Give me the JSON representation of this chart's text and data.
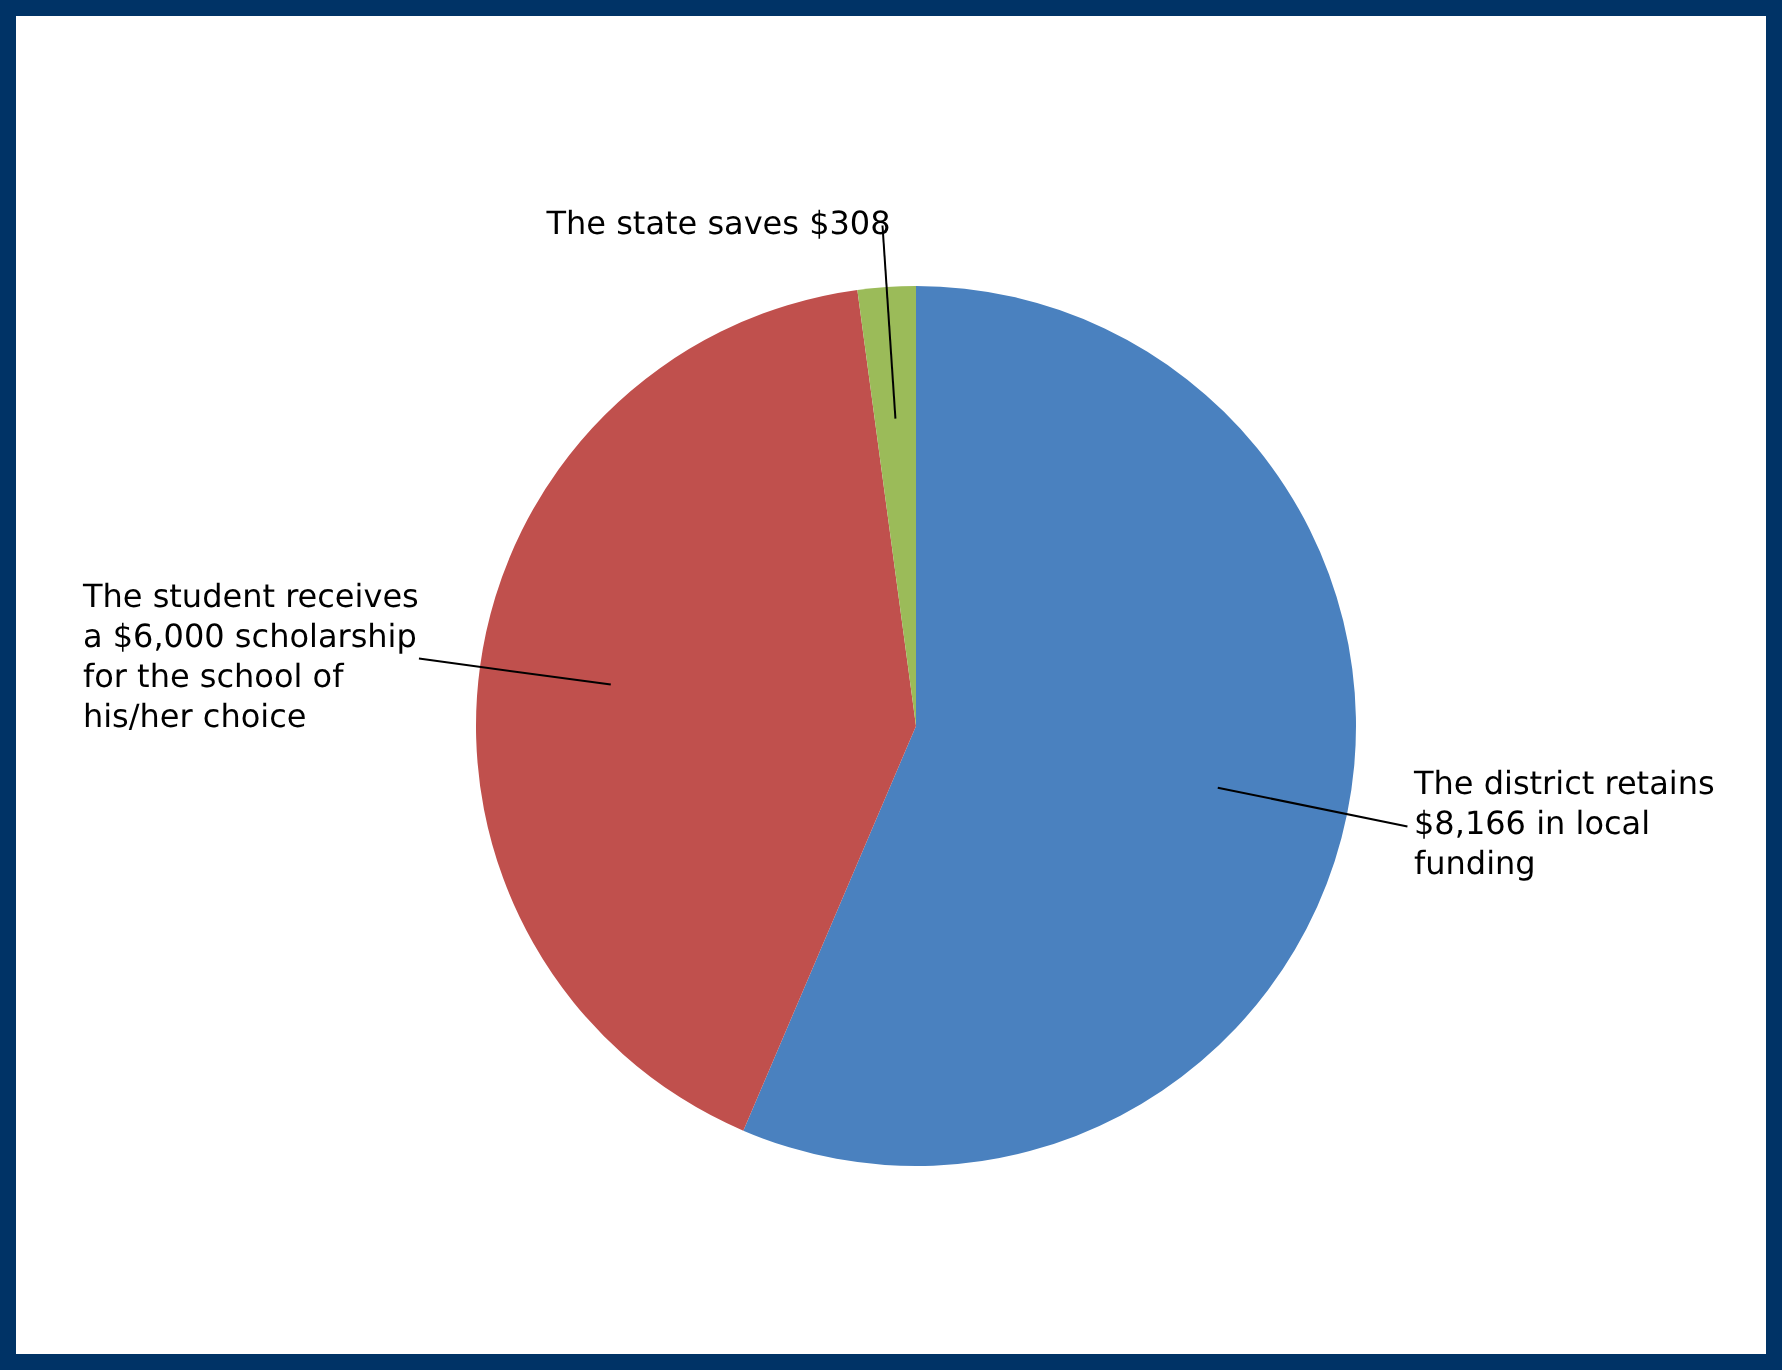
{
  "chart_data": {
    "type": "pie",
    "categories": [
      "The district retains $8,166 in local funding",
      "The student receives a $6,000 scholarship for the school of his/her choice",
      "The state saves $308"
    ],
    "values": [
      8166,
      6000,
      308
    ],
    "colors": [
      "#4a81bf",
      "#c0504d",
      "#9bbb59"
    ]
  }
}
